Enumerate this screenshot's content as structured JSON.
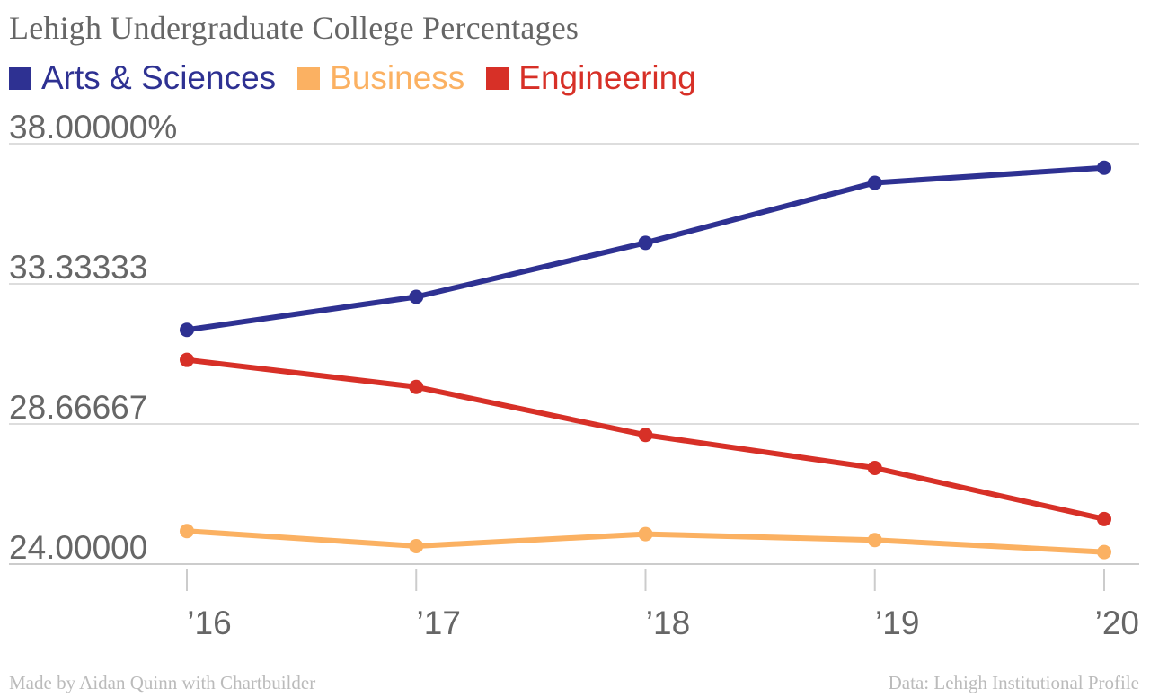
{
  "chart_data": {
    "type": "line",
    "title": "Lehigh Undergraduate College Percentages",
    "categories": [
      "’16",
      "’17",
      "’18",
      "’19",
      "’20"
    ],
    "ylim": [
      24.0,
      38.0
    ],
    "yticks": [
      {
        "value": 38.0,
        "label": "38.00000%"
      },
      {
        "value": 33.33333,
        "label": "33.33333"
      },
      {
        "value": 28.66667,
        "label": "28.66667"
      },
      {
        "value": 24.0,
        "label": "24.00000"
      }
    ],
    "grid": true,
    "legend_position": "top-left",
    "series": [
      {
        "name": "Arts & Sciences",
        "color": "#2e3192",
        "values": [
          31.8,
          32.9,
          34.7,
          36.7,
          37.2
        ]
      },
      {
        "name": "Business",
        "color": "#fbb162",
        "values": [
          25.1,
          24.6,
          25.0,
          24.8,
          24.4
        ]
      },
      {
        "name": "Engineering",
        "color": "#d73027",
        "values": [
          30.8,
          29.9,
          28.3,
          27.2,
          25.5
        ]
      }
    ]
  },
  "footer": {
    "left": "Made by Aidan Quinn with Chartbuilder",
    "right": "Data: Lehigh Institutional Profile"
  }
}
